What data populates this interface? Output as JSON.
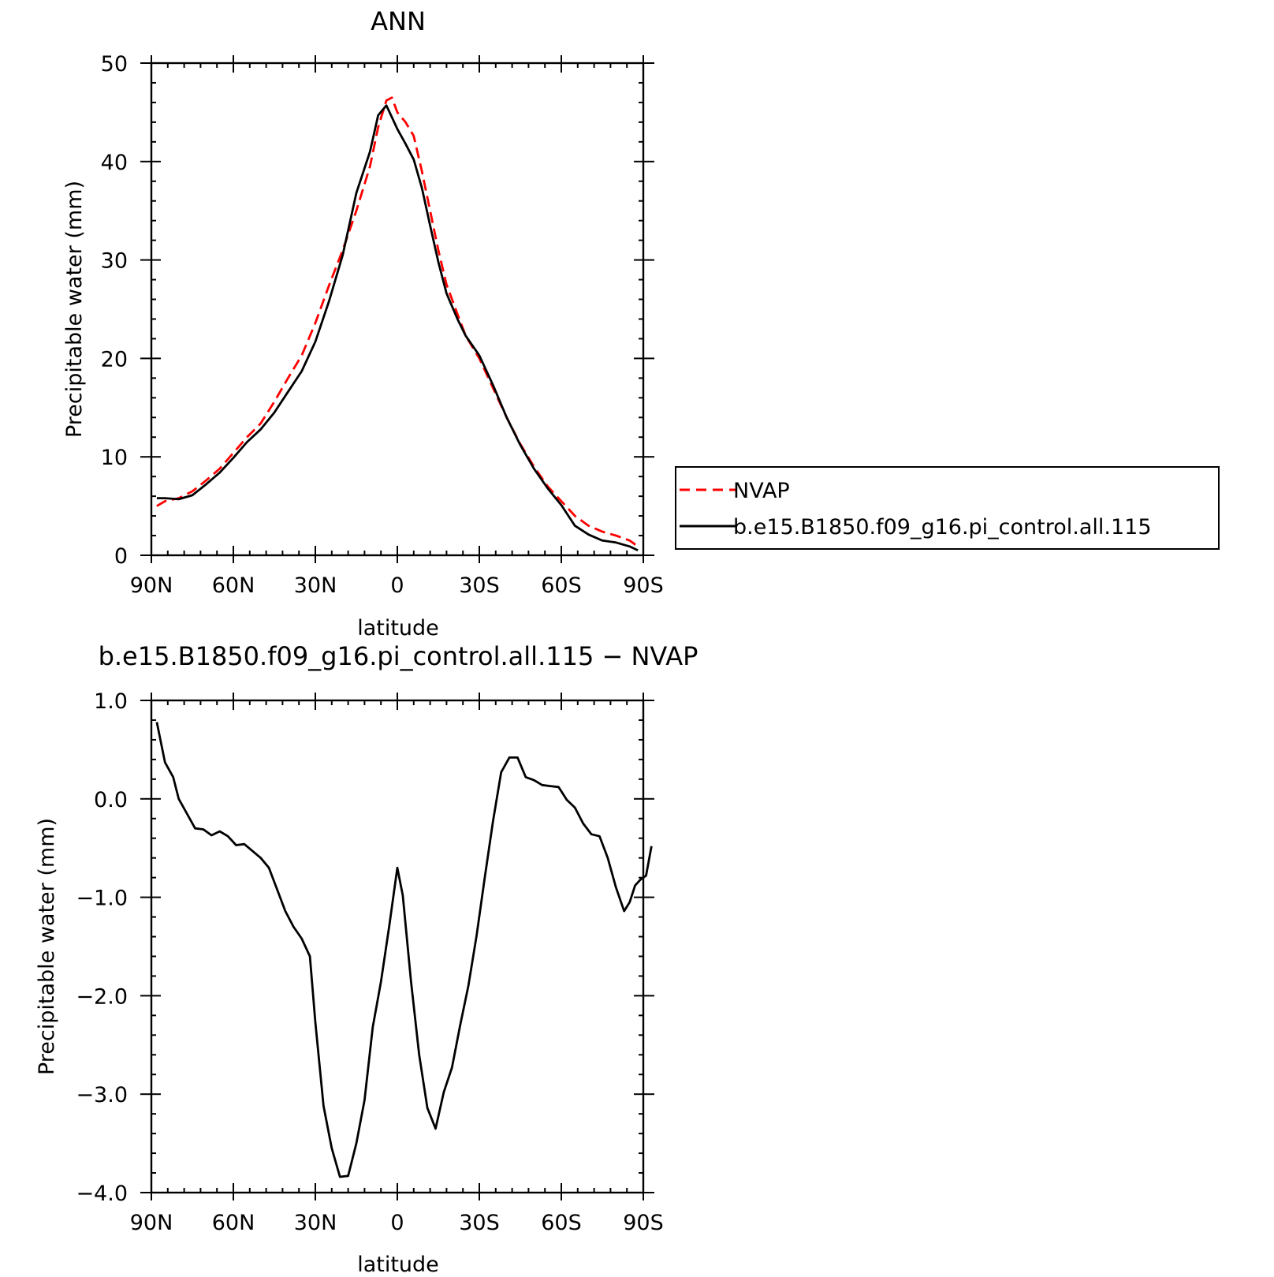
{
  "colors": {
    "obs": "#ff0000",
    "model": "#000000",
    "axes": "#000000",
    "background": "#ffffff"
  },
  "chart_data": [
    {
      "type": "line",
      "title": "ANN",
      "xlabel": "latitude",
      "ylabel": "Precipitable water (mm)",
      "xlim": [
        90,
        -90
      ],
      "ylim": [
        0,
        50
      ],
      "x_ticks": [
        90,
        60,
        30,
        0,
        -30,
        -60,
        -90
      ],
      "x_tick_labels": [
        "90N",
        "60N",
        "30N",
        "0",
        "30S",
        "60S",
        "90S"
      ],
      "y_ticks": [
        0,
        10,
        20,
        30,
        40,
        50
      ],
      "y_tick_labels": [
        "0",
        "10",
        "20",
        "30",
        "40",
        "50"
      ],
      "legend_position": "right",
      "series": [
        {
          "name": "NVAP",
          "style": "dashed",
          "color": "#ff0000",
          "points": [
            [
              88,
              5.0
            ],
            [
              85,
              5.5
            ],
            [
              80,
              5.8
            ],
            [
              75,
              6.5
            ],
            [
              70,
              7.6
            ],
            [
              65,
              8.8
            ],
            [
              60,
              10.4
            ],
            [
              55,
              12.0
            ],
            [
              50,
              13.4
            ],
            [
              45,
              15.6
            ],
            [
              40,
              18.0
            ],
            [
              35,
              20.3
            ],
            [
              30,
              23.6
            ],
            [
              25,
              27.4
            ],
            [
              20,
              31.0
            ],
            [
              15,
              35.0
            ],
            [
              10,
              39.5
            ],
            [
              7,
              43.5
            ],
            [
              4,
              46.2
            ],
            [
              2,
              46.5
            ],
            [
              0,
              45.0
            ],
            [
              -3,
              44.0
            ],
            [
              -6,
              42.6
            ],
            [
              -9,
              39.0
            ],
            [
              -12,
              35.0
            ],
            [
              -15,
              31.0
            ],
            [
              -18,
              27.5
            ],
            [
              -22,
              24.5
            ],
            [
              -25,
              22.3
            ],
            [
              -30,
              20.0
            ],
            [
              -35,
              17.0
            ],
            [
              -40,
              14.0
            ],
            [
              -45,
              11.3
            ],
            [
              -50,
              9.0
            ],
            [
              -55,
              7.0
            ],
            [
              -60,
              5.5
            ],
            [
              -65,
              4.0
            ],
            [
              -70,
              3.0
            ],
            [
              -75,
              2.4
            ],
            [
              -80,
              2.0
            ],
            [
              -85,
              1.5
            ],
            [
              -88,
              0.9
            ]
          ]
        },
        {
          "name": "b.e15.B1850.f09_g16.pi_control.all.115",
          "style": "solid",
          "color": "#000000",
          "points": [
            [
              88,
              5.8
            ],
            [
              85,
              5.8
            ],
            [
              80,
              5.7
            ],
            [
              75,
              6.1
            ],
            [
              70,
              7.2
            ],
            [
              65,
              8.4
            ],
            [
              60,
              9.9
            ],
            [
              55,
              11.5
            ],
            [
              50,
              12.8
            ],
            [
              45,
              14.5
            ],
            [
              40,
              16.6
            ],
            [
              35,
              18.7
            ],
            [
              30,
              21.7
            ],
            [
              25,
              25.8
            ],
            [
              20,
              30.5
            ],
            [
              15,
              36.8
            ],
            [
              10,
              41.0
            ],
            [
              7,
              44.7
            ],
            [
              4,
              45.7
            ],
            [
              2,
              44.5
            ],
            [
              0,
              43.3
            ],
            [
              -3,
              41.8
            ],
            [
              -6,
              40.2
            ],
            [
              -9,
              37.3
            ],
            [
              -12,
              33.5
            ],
            [
              -15,
              29.8
            ],
            [
              -18,
              26.6
            ],
            [
              -22,
              24.0
            ],
            [
              -25,
              22.3
            ],
            [
              -30,
              20.3
            ],
            [
              -35,
              17.3
            ],
            [
              -40,
              14.0
            ],
            [
              -45,
              11.2
            ],
            [
              -50,
              8.8
            ],
            [
              -55,
              6.8
            ],
            [
              -60,
              5.1
            ],
            [
              -65,
              3.0
            ],
            [
              -70,
              2.1
            ],
            [
              -75,
              1.5
            ],
            [
              -80,
              1.3
            ],
            [
              -85,
              0.9
            ],
            [
              -88,
              0.5
            ]
          ]
        }
      ]
    },
    {
      "type": "line",
      "title": "b.e15.B1850.f09_g16.pi_control.all.115 − NVAP",
      "xlabel": "latitude",
      "ylabel": "Precipitable water (mm)",
      "xlim": [
        90,
        -90
      ],
      "ylim": [
        -4.0,
        1.0
      ],
      "x_ticks": [
        90,
        60,
        30,
        0,
        -30,
        -60,
        -90
      ],
      "x_tick_labels": [
        "90N",
        "60N",
        "30N",
        "0",
        "30S",
        "60S",
        "90S"
      ],
      "y_ticks": [
        1.0,
        0.0,
        -1.0,
        -2.0,
        -3.0,
        -4.0
      ],
      "y_tick_labels": [
        "1.0",
        "0.0",
        "−1.0",
        "−2.0",
        "−3.0",
        "−4.0"
      ],
      "series": [
        {
          "style": "solid",
          "color": "#000000",
          "points": [
            [
              88,
              0.78
            ],
            [
              85,
              0.37
            ],
            [
              82,
              0.22
            ],
            [
              80,
              0.0
            ],
            [
              77,
              -0.15
            ],
            [
              74,
              -0.3
            ],
            [
              71,
              -0.31
            ],
            [
              68,
              -0.37
            ],
            [
              65,
              -0.33
            ],
            [
              62,
              -0.38
            ],
            [
              59,
              -0.47
            ],
            [
              56,
              -0.46
            ],
            [
              53,
              -0.53
            ],
            [
              50,
              -0.6
            ],
            [
              47,
              -0.7
            ],
            [
              44,
              -0.92
            ],
            [
              41,
              -1.14
            ],
            [
              38,
              -1.3
            ],
            [
              35,
              -1.42
            ],
            [
              32,
              -1.6
            ],
            [
              30,
              -2.27
            ],
            [
              27,
              -3.12
            ],
            [
              24,
              -3.55
            ],
            [
              21,
              -3.84
            ],
            [
              18,
              -3.83
            ],
            [
              15,
              -3.5
            ],
            [
              12,
              -3.06
            ],
            [
              9,
              -2.32
            ],
            [
              6,
              -1.86
            ],
            [
              3,
              -1.3
            ],
            [
              0,
              -0.7
            ],
            [
              -2,
              -0.98
            ],
            [
              -5,
              -1.85
            ],
            [
              -8,
              -2.6
            ],
            [
              -11,
              -3.14
            ],
            [
              -14,
              -3.35
            ],
            [
              -17,
              -2.98
            ],
            [
              -20,
              -2.73
            ],
            [
              -23,
              -2.3
            ],
            [
              -26,
              -1.9
            ],
            [
              -29,
              -1.39
            ],
            [
              -32,
              -0.8
            ],
            [
              -35,
              -0.23
            ],
            [
              -38,
              0.27
            ],
            [
              -41,
              0.42
            ],
            [
              -44,
              0.42
            ],
            [
              -47,
              0.22
            ],
            [
              -50,
              0.19
            ],
            [
              -53,
              0.14
            ],
            [
              -56,
              0.13
            ],
            [
              -59,
              0.12
            ],
            [
              -62,
              -0.01
            ],
            [
              -65,
              -0.09
            ],
            [
              -68,
              -0.25
            ],
            [
              -71,
              -0.36
            ],
            [
              -74,
              -0.38
            ],
            [
              -77,
              -0.6
            ],
            [
              -80,
              -0.9
            ],
            [
              -83,
              -1.14
            ],
            [
              -85,
              -1.05
            ],
            [
              -87,
              -0.88
            ],
            [
              -89,
              -0.82
            ],
            [
              -91,
              -0.78
            ],
            [
              -93,
              -0.48
            ]
          ]
        }
      ]
    }
  ]
}
